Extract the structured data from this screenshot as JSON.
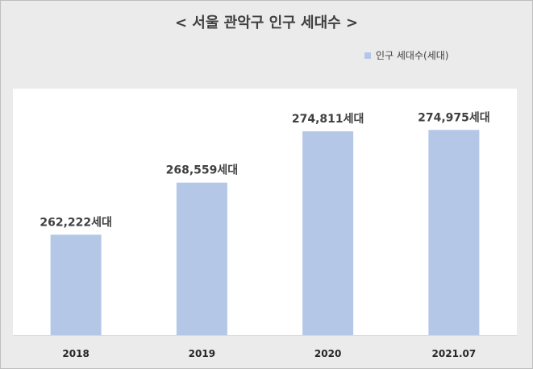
{
  "chart_data": {
    "type": "bar",
    "title": "< 서울 관악구 인구 세대수 >",
    "categories": [
      "2018",
      "2019",
      "2020",
      "2021.07"
    ],
    "series": [
      {
        "name": "인구 세대수(세대)",
        "values": [
          262222,
          268559,
          274811,
          274975
        ],
        "value_labels": [
          "262,222세대",
          "268,559세대",
          "274,811세대",
          "274,975세대"
        ]
      }
    ],
    "ylim": [
      250000,
      280000
    ],
    "grid": false,
    "legend_position": "top-right",
    "colors": {
      "bar": "#b4c7e7",
      "text": "#404040",
      "background": "#ebebeb",
      "plot_area": "#ffffff"
    }
  }
}
